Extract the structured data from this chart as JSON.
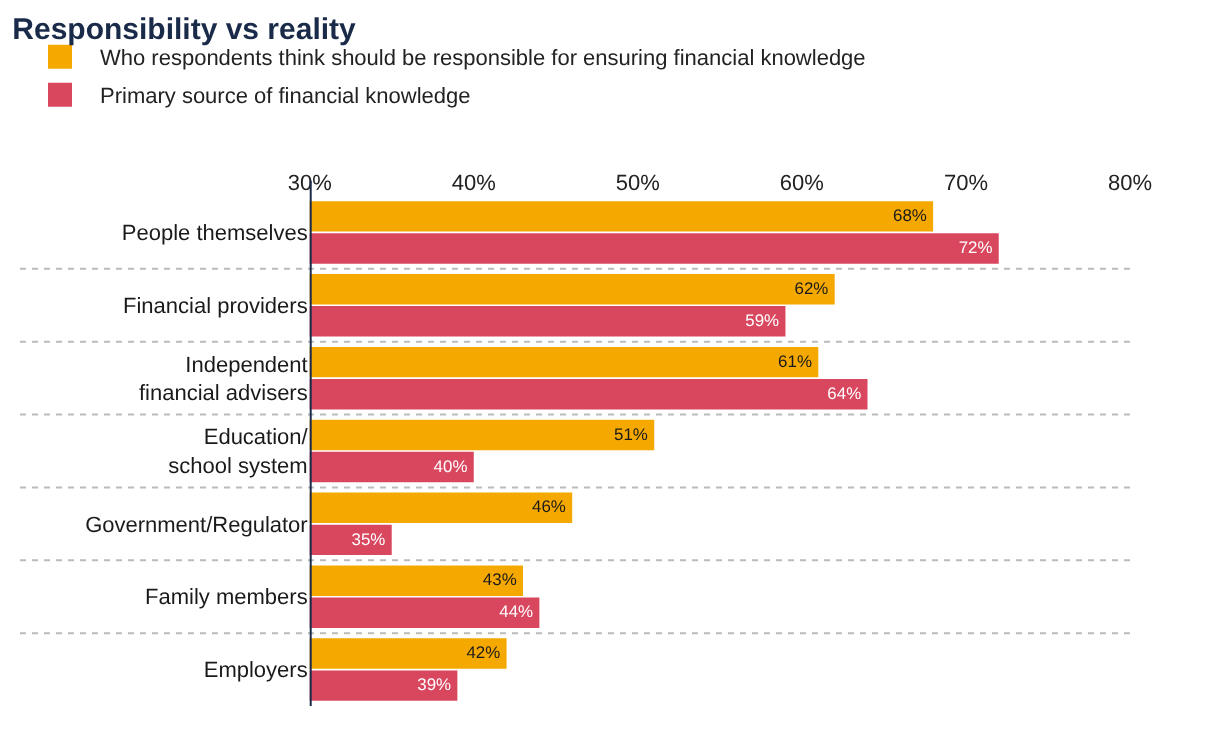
{
  "chart_data": {
    "type": "bar",
    "orientation": "horizontal",
    "title": "Responsibility vs reality",
    "categories": [
      "People themselves",
      "Financial providers",
      "Independent\nfinancial advisers",
      "Education/\nschool system",
      "Government/Regulator",
      "Family members",
      "Employers"
    ],
    "series": [
      {
        "name": "Who respondents think should be responsible for ensuring financial knowledge",
        "color": "#f5a800",
        "values": [
          68,
          62,
          61,
          51,
          46,
          43,
          42
        ],
        "value_labels": [
          "68%",
          "62%",
          "61%",
          "51%",
          "46%",
          "43%",
          "42%"
        ]
      },
      {
        "name": "Primary source of financial knowledge",
        "color": "#d9475f",
        "values": [
          72,
          59,
          64,
          40,
          35,
          44,
          39
        ],
        "value_labels": [
          "72%",
          "59%",
          "64%",
          "40%",
          "35%",
          "44%",
          "39%"
        ]
      }
    ],
    "xlim": [
      30,
      80
    ],
    "xticks": [
      {
        "value": 30,
        "label": "30%"
      },
      {
        "value": 40,
        "label": "40%"
      },
      {
        "value": 50,
        "label": "50%"
      },
      {
        "value": 60,
        "label": "60%"
      },
      {
        "value": 70,
        "label": "70%"
      },
      {
        "value": 80,
        "label": "80%"
      }
    ],
    "legend": "top left"
  }
}
